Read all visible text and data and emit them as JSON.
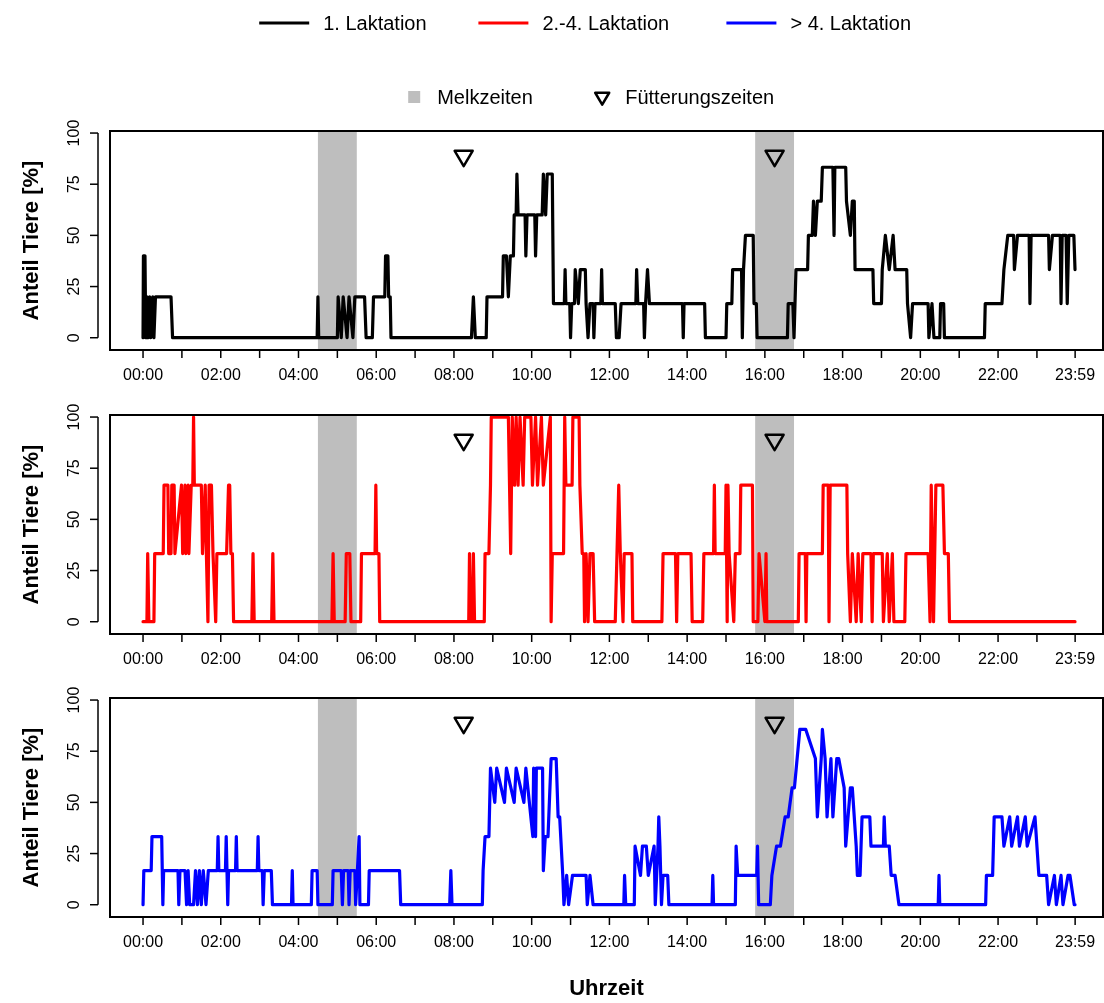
{
  "chart_data": [
    {
      "type": "line",
      "ylabel": "Anteil Tiere [%]",
      "xlim": [
        -0.85,
        24.7
      ],
      "ylim": [
        -6,
        101
      ],
      "yticks": [
        0,
        25,
        50,
        75,
        100
      ],
      "xticks": [
        {
          "value": 0,
          "label": "00:00"
        },
        {
          "value": 1,
          "label": null
        },
        {
          "value": 2,
          "label": "02:00"
        },
        {
          "value": 3,
          "label": null
        },
        {
          "value": 4,
          "label": "04:00"
        },
        {
          "value": 5,
          "label": null
        },
        {
          "value": 6,
          "label": "06:00"
        },
        {
          "value": 7,
          "label": null
        },
        {
          "value": 8,
          "label": "08:00"
        },
        {
          "value": 9,
          "label": null
        },
        {
          "value": 10,
          "label": "10:00"
        },
        {
          "value": 11,
          "label": null
        },
        {
          "value": 12,
          "label": "12:00"
        },
        {
          "value": 13,
          "label": null
        },
        {
          "value": 14,
          "label": "14:00"
        },
        {
          "value": 15,
          "label": null
        },
        {
          "value": 16,
          "label": "16:00"
        },
        {
          "value": 17,
          "label": null
        },
        {
          "value": 18,
          "label": "18:00"
        },
        {
          "value": 19,
          "label": null
        },
        {
          "value": 20,
          "label": "20:00"
        },
        {
          "value": 21,
          "label": null
        },
        {
          "value": 22,
          "label": "22:00"
        },
        {
          "value": 23,
          "label": null
        },
        {
          "value": 23.983,
          "label": "23:59"
        }
      ],
      "legend": "top",
      "grid": false,
      "line_style": "solid",
      "bands": [
        {
          "axis": "x",
          "from": 4.5,
          "to": 5.5,
          "label": "Melkzeiten",
          "color": "#bebebe"
        },
        {
          "axis": "x",
          "from": 15.75,
          "to": 16.75,
          "color": "#bebebe"
        }
      ],
      "series": [
        {
          "name": "1. Laktation",
          "color": "#000000",
          "marker": "none",
          "x": [
            0,
            0.01,
            0.05,
            0.07,
            0.1,
            0.13,
            0.17,
            0.2,
            0.25,
            0.28,
            0.32,
            0.72,
            0.76,
            4.48,
            4.5,
            4.52,
            5.0,
            5.02,
            5.1,
            5.15,
            5.25,
            5.3,
            5.4,
            5.45,
            5.7,
            5.74,
            5.9,
            5.93,
            6.22,
            6.24,
            6.3,
            6.32,
            6.36,
            6.38,
            8.45,
            8.5,
            8.55,
            8.83,
            8.85,
            9.25,
            9.27,
            9.35,
            9.4,
            9.45,
            9.53,
            9.55,
            9.6,
            9.62,
            9.65,
            9.83,
            9.85,
            9.88,
            10.08,
            10.1,
            10.13,
            10.27,
            10.3,
            10.36,
            10.4,
            10.53,
            10.56,
            10.84,
            10.86,
            10.88,
            10.98,
            11.0,
            11.03,
            11.1,
            11.12,
            11.2,
            11.25,
            11.38,
            11.4,
            11.45,
            11.5,
            11.58,
            11.6,
            11.63,
            11.78,
            11.8,
            11.82,
            12.15,
            12.18,
            12.25,
            12.3,
            12.68,
            12.7,
            12.73,
            12.88,
            12.9,
            12.93,
            12.98,
            13.03,
            13.88,
            13.9,
            13.92,
            14.45,
            14.47,
            15.0,
            15.02,
            15.15,
            15.17,
            15.4,
            15.42,
            15.45,
            15.5,
            15.7,
            15.72,
            15.78,
            15.8,
            16.58,
            16.6,
            16.72,
            16.75,
            16.8,
            17.1,
            17.12,
            17.22,
            17.25,
            17.3,
            17.35,
            17.45,
            17.48,
            17.75,
            17.78,
            17.8,
            18.08,
            18.1,
            18.2,
            18.25,
            18.3,
            18.32,
            18.78,
            18.8,
            19.0,
            19.02,
            19.1,
            19.2,
            19.3,
            19.35,
            19.65,
            19.67,
            19.75,
            19.8,
            20.2,
            20.22,
            20.3,
            20.35,
            20.5,
            20.52,
            20.6,
            20.62,
            21.65,
            21.67,
            22.1,
            22.15,
            22.25,
            22.4,
            22.42,
            22.5,
            22.8,
            22.82,
            22.85,
            23.3,
            23.32,
            23.4,
            23.6,
            23.62,
            23.65,
            23.75,
            23.78,
            23.82,
            23.95,
            23.98
          ],
          "values": [
            0,
            40,
            40,
            0,
            20,
            0,
            20,
            0,
            20,
            0,
            20,
            20,
            0,
            0,
            20,
            0,
            0,
            20,
            0,
            20,
            0,
            20,
            0,
            20,
            20,
            0,
            0,
            20,
            20,
            40,
            40,
            20,
            20,
            0,
            0,
            20,
            0,
            0,
            20,
            20,
            40,
            40,
            20,
            40,
            40,
            60,
            60,
            80,
            60,
            60,
            40,
            60,
            60,
            40,
            60,
            60,
            80,
            60,
            80,
            80,
            16.7,
            16.7,
            33.3,
            16.7,
            16.7,
            0,
            16.7,
            16.7,
            33.3,
            16.7,
            33.3,
            33.3,
            16.7,
            0,
            16.7,
            16.7,
            0,
            16.7,
            16.7,
            33.3,
            16.7,
            16.7,
            0,
            0,
            16.7,
            16.7,
            33.3,
            16.7,
            16.7,
            0,
            16.7,
            33.3,
            16.7,
            16.7,
            0,
            16.7,
            16.7,
            0,
            0,
            16.7,
            16.7,
            33.3,
            33.3,
            0,
            33.3,
            50,
            50,
            16.7,
            16.7,
            0,
            0,
            16.7,
            16.7,
            0,
            33.3,
            33.3,
            50,
            50,
            66.7,
            50,
            66.7,
            66.7,
            83.3,
            83.3,
            50,
            83.3,
            83.3,
            66.7,
            50,
            66.7,
            66.7,
            33.3,
            33.3,
            16.7,
            16.7,
            33.3,
            50,
            33.3,
            50,
            33.3,
            33.3,
            16.7,
            0,
            16.7,
            16.7,
            0,
            16.7,
            0,
            0,
            16.7,
            16.7,
            0,
            0,
            16.7,
            16.7,
            33.3,
            50,
            50,
            33.3,
            50,
            50,
            16.7,
            50,
            50,
            33.3,
            50,
            50,
            16.7,
            50,
            50,
            16.7,
            50,
            50,
            33.3
          ]
        },
        {
          "name": "Fütterungszeiten",
          "color": "#000000",
          "type": "scatter",
          "marker": "triangle",
          "x": [
            8.25,
            16.25
          ],
          "values": [
            88,
            88
          ]
        }
      ]
    },
    {
      "type": "line",
      "ylabel": "Anteil Tiere [%]",
      "xlim": [
        -0.85,
        24.7
      ],
      "ylim": [
        -6,
        101
      ],
      "yticks": [
        0,
        25,
        50,
        75,
        100
      ],
      "xticks": [
        {
          "value": 0,
          "label": "00:00"
        },
        {
          "value": 1,
          "label": null
        },
        {
          "value": 2,
          "label": "02:00"
        },
        {
          "value": 3,
          "label": null
        },
        {
          "value": 4,
          "label": "04:00"
        },
        {
          "value": 5,
          "label": null
        },
        {
          "value": 6,
          "label": "06:00"
        },
        {
          "value": 7,
          "label": null
        },
        {
          "value": 8,
          "label": "08:00"
        },
        {
          "value": 9,
          "label": null
        },
        {
          "value": 10,
          "label": "10:00"
        },
        {
          "value": 11,
          "label": null
        },
        {
          "value": 12,
          "label": "12:00"
        },
        {
          "value": 13,
          "label": null
        },
        {
          "value": 14,
          "label": "14:00"
        },
        {
          "value": 15,
          "label": null
        },
        {
          "value": 16,
          "label": "16:00"
        },
        {
          "value": 17,
          "label": null
        },
        {
          "value": 18,
          "label": "18:00"
        },
        {
          "value": 19,
          "label": null
        },
        {
          "value": 20,
          "label": "20:00"
        },
        {
          "value": 21,
          "label": null
        },
        {
          "value": 22,
          "label": "22:00"
        },
        {
          "value": 23,
          "label": null
        },
        {
          "value": 23.983,
          "label": "23:59"
        }
      ],
      "legend": "top",
      "grid": false,
      "line_style": "solid",
      "bands": [
        {
          "axis": "x",
          "from": 4.5,
          "to": 5.5,
          "color": "#bebebe"
        },
        {
          "axis": "x",
          "from": 15.75,
          "to": 16.75,
          "color": "#bebebe"
        }
      ],
      "series": [
        {
          "name": "2.-4. Laktation",
          "color": "#ff0000",
          "marker": "none",
          "x": [
            0,
            0.1,
            0.12,
            0.15,
            0.28,
            0.3,
            0.52,
            0.54,
            0.64,
            0.66,
            0.72,
            0.74,
            0.8,
            0.82,
            0.99,
            1.02,
            1.08,
            1.1,
            1.16,
            1.18,
            1.24,
            1.28,
            1.3,
            1.32,
            1.5,
            1.53,
            1.6,
            1.63,
            1.67,
            1.7,
            1.76,
            1.8,
            1.87,
            1.9,
            2.15,
            2.2,
            2.23,
            2.26,
            2.3,
            2.33,
            2.8,
            2.83,
            2.86,
            3.31,
            3.34,
            3.37,
            4.86,
            4.89,
            4.92,
            5.2,
            5.23,
            5.32,
            5.35,
            5.6,
            5.62,
            5.97,
            5.99,
            6.01,
            6.07,
            6.09,
            8.38,
            8.4,
            8.43,
            8.48,
            8.5,
            8.53,
            8.78,
            8.8,
            8.9,
            8.94,
            8.96,
            9.4,
            9.43,
            9.46,
            9.5,
            9.56,
            9.6,
            9.65,
            9.7,
            9.78,
            9.82,
            9.98,
            10.02,
            10.1,
            10.15,
            10.25,
            10.3,
            10.48,
            10.5,
            10.53,
            10.82,
            10.85,
            10.88,
            11.04,
            11.06,
            11.22,
            11.24,
            11.3,
            11.34,
            11.36,
            11.4,
            11.45,
            11.5,
            11.58,
            11.62,
            12.15,
            12.24,
            12.28,
            12.35,
            12.38,
            12.58,
            12.6,
            13.35,
            13.38,
            13.7,
            13.73,
            13.76,
            14.1,
            14.13,
            14.4,
            14.43,
            14.68,
            14.7,
            14.72,
            14.98,
            15.0,
            15.03,
            15.05,
            15.08,
            15.2,
            15.24,
            15.36,
            15.38,
            15.68,
            15.7,
            15.82,
            15.85,
            16.0,
            16.03,
            16.05,
            16.86,
            16.88,
            17.04,
            17.06,
            17.08,
            17.48,
            17.5,
            17.63,
            17.65,
            17.68,
            18.11,
            18.13,
            18.2,
            18.25,
            18.35,
            18.4,
            18.48,
            18.52,
            18.73,
            18.76,
            18.79,
            19.02,
            19.05,
            19.15,
            19.2,
            19.28,
            19.32,
            19.6,
            19.63,
            20.2,
            20.25,
            20.28,
            20.34,
            20.4,
            20.58,
            20.62,
            20.72,
            20.75,
            23.98
          ],
          "values": [
            0,
            0,
            33.3,
            0,
            0,
            33.3,
            33.3,
            66.7,
            66.7,
            33.3,
            33.3,
            66.7,
            66.7,
            33.3,
            66.7,
            33.3,
            66.7,
            33.3,
            66.7,
            33.3,
            66.7,
            66.7,
            100,
            66.7,
            66.7,
            33.3,
            66.7,
            33.3,
            0,
            66.7,
            66.7,
            33.3,
            0,
            33.3,
            33.3,
            66.7,
            66.7,
            33.3,
            33.3,
            0,
            0,
            33.3,
            0,
            0,
            33.3,
            0,
            0,
            33.3,
            0,
            0,
            33.3,
            33.3,
            0,
            0,
            33.3,
            33.3,
            66.7,
            33.3,
            33.3,
            0,
            0,
            33.3,
            0,
            0,
            33.3,
            0,
            0,
            33.3,
            33.3,
            66.7,
            100,
            100,
            66.7,
            33.3,
            100,
            66.7,
            100,
            66.7,
            100,
            66.7,
            100,
            100,
            66.7,
            100,
            66.7,
            100,
            66.7,
            100,
            0,
            33.3,
            33.3,
            100,
            66.7,
            66.7,
            100,
            100,
            66.7,
            33.3,
            33.3,
            0,
            33.3,
            0,
            33.3,
            33.3,
            0,
            0,
            66.7,
            33.3,
            0,
            33.3,
            33.3,
            0,
            0,
            33.3,
            33.3,
            0,
            33.3,
            33.3,
            0,
            0,
            33.3,
            33.3,
            66.7,
            33.3,
            33.3,
            66.7,
            0,
            66.7,
            33.3,
            0,
            33.3,
            33.3,
            66.7,
            66.7,
            0,
            0,
            33.3,
            0,
            33.3,
            0,
            0,
            33.3,
            33.3,
            0,
            33.3,
            33.3,
            66.7,
            66.7,
            0,
            66.7,
            66.7,
            33.3,
            0,
            33.3,
            0,
            33.3,
            0,
            33.3,
            33.3,
            0,
            33.3,
            33.3,
            0,
            33.3,
            0,
            33.3,
            0,
            0,
            33.3,
            33.3,
            0,
            66.7,
            0,
            66.7,
            66.7,
            33.3,
            33.3,
            0,
            0
          ]
        },
        {
          "color": "#000000",
          "type": "scatter",
          "marker": "triangle",
          "x": [
            8.25,
            16.25
          ],
          "values": [
            88,
            88
          ]
        }
      ]
    },
    {
      "type": "line",
      "xlabel": "Uhrzeit",
      "ylabel": "Anteil Tiere [%]",
      "xlim": [
        -0.85,
        24.7
      ],
      "ylim": [
        -6,
        101
      ],
      "yticks": [
        0,
        25,
        50,
        75,
        100
      ],
      "xticks": [
        {
          "value": 0,
          "label": "00:00"
        },
        {
          "value": 1,
          "label": null
        },
        {
          "value": 2,
          "label": "02:00"
        },
        {
          "value": 3,
          "label": null
        },
        {
          "value": 4,
          "label": "04:00"
        },
        {
          "value": 5,
          "label": null
        },
        {
          "value": 6,
          "label": "06:00"
        },
        {
          "value": 7,
          "label": null
        },
        {
          "value": 8,
          "label": "08:00"
        },
        {
          "value": 9,
          "label": null
        },
        {
          "value": 10,
          "label": "10:00"
        },
        {
          "value": 11,
          "label": null
        },
        {
          "value": 12,
          "label": "12:00"
        },
        {
          "value": 13,
          "label": null
        },
        {
          "value": 14,
          "label": "14:00"
        },
        {
          "value": 15,
          "label": null
        },
        {
          "value": 16,
          "label": "16:00"
        },
        {
          "value": 17,
          "label": null
        },
        {
          "value": 18,
          "label": "18:00"
        },
        {
          "value": 19,
          "label": null
        },
        {
          "value": 20,
          "label": "20:00"
        },
        {
          "value": 21,
          "label": null
        },
        {
          "value": 22,
          "label": "22:00"
        },
        {
          "value": 23,
          "label": null
        },
        {
          "value": 23.983,
          "label": "23:59"
        }
      ],
      "legend": "top",
      "grid": false,
      "line_style": "solid",
      "bands": [
        {
          "axis": "x",
          "from": 4.5,
          "to": 5.5,
          "color": "#bebebe"
        },
        {
          "axis": "x",
          "from": 15.75,
          "to": 16.75,
          "color": "#bebebe"
        }
      ],
      "series": [
        {
          "name": "> 4. Laktation",
          "color": "#0000ff",
          "marker": "none",
          "x": [
            0,
            0.02,
            0.21,
            0.23,
            0.48,
            0.51,
            0.53,
            0.9,
            0.92,
            0.95,
            1.08,
            1.12,
            1.16,
            1.2,
            1.3,
            1.35,
            1.4,
            1.45,
            1.5,
            1.55,
            1.62,
            1.68,
            1.91,
            1.93,
            1.95,
            2.12,
            2.14,
            2.16,
            2.18,
            2.2,
            2.38,
            2.4,
            2.42,
            2.94,
            2.96,
            2.98,
            3.07,
            3.09,
            3.12,
            3.3,
            3.33,
            3.82,
            3.84,
            3.86,
            4.33,
            4.35,
            4.48,
            4.5,
            4.87,
            4.89,
            5.1,
            5.13,
            5.16,
            5.28,
            5.3,
            5.33,
            5.45,
            5.47,
            5.56,
            5.58,
            5.8,
            5.82,
            6.6,
            6.63,
            7.89,
            7.92,
            7.95,
            8.73,
            8.75,
            8.8,
            8.9,
            8.94,
            9.05,
            9.1,
            9.3,
            9.35,
            9.55,
            9.6,
            9.8,
            9.85,
            10.03,
            10.05,
            10.1,
            10.12,
            10.28,
            10.3,
            10.35,
            10.42,
            10.5,
            10.63,
            10.68,
            10.72,
            10.8,
            10.83,
            10.9,
            10.95,
            11.05,
            11.4,
            11.43,
            11.5,
            11.58,
            12.37,
            12.39,
            12.42,
            12.64,
            12.66,
            12.8,
            12.85,
            12.95,
            13.0,
            13.15,
            13.18,
            13.25,
            13.27,
            13.3,
            13.34,
            13.38,
            13.5,
            13.53,
            14.64,
            14.66,
            14.68,
            15.24,
            15.26,
            15.3,
            15.79,
            15.81,
            15.84,
            16.14,
            16.18,
            16.3,
            16.4,
            16.52,
            16.6,
            16.7,
            16.76,
            16.9,
            17.05,
            17.3,
            17.35,
            17.45,
            17.48,
            17.55,
            17.6,
            17.7,
            17.75,
            17.85,
            17.9,
            18.04,
            18.08,
            18.2,
            18.25,
            18.35,
            18.38,
            18.45,
            18.5,
            18.7,
            18.73,
            19.05,
            19.07,
            19.1,
            19.2,
            19.25,
            19.35,
            19.45,
            20.46,
            20.48,
            20.5,
            21.68,
            21.7,
            21.86,
            21.9,
            22.1,
            22.15,
            22.3,
            22.35,
            22.5,
            22.55,
            22.7,
            22.75,
            22.95,
            23.05,
            23.25,
            23.3,
            23.45,
            23.5,
            23.62,
            23.67,
            23.8,
            23.85,
            23.96,
            23.98
          ],
          "values": [
            0,
            16.7,
            16.7,
            33.3,
            33.3,
            0,
            16.7,
            16.7,
            0,
            16.7,
            16.7,
            0,
            16.7,
            0,
            0,
            16.7,
            0,
            16.7,
            0,
            16.7,
            0,
            16.7,
            16.7,
            33.3,
            16.7,
            16.7,
            33.3,
            16.7,
            0,
            16.7,
            16.7,
            33.3,
            16.7,
            16.7,
            33.3,
            16.7,
            16.7,
            0,
            16.7,
            16.7,
            0,
            0,
            16.7,
            0,
            0,
            16.7,
            16.7,
            0,
            0,
            16.7,
            16.7,
            0,
            16.7,
            16.7,
            0,
            16.7,
            16.7,
            0,
            33.3,
            0,
            0,
            16.7,
            16.7,
            0,
            0,
            16.7,
            0,
            0,
            16.7,
            33.3,
            33.3,
            66.7,
            50,
            66.7,
            50,
            66.7,
            50,
            66.7,
            50,
            66.7,
            33.3,
            66.7,
            33.3,
            66.7,
            66.7,
            16.7,
            33.3,
            33.3,
            71.4,
            71.4,
            42.9,
            42.9,
            14.3,
            0,
            14.3,
            0,
            14.3,
            14.3,
            0,
            14.3,
            0,
            0,
            14.3,
            0,
            0,
            28.6,
            14.3,
            28.6,
            28.6,
            14.3,
            28.6,
            0,
            28.6,
            42.9,
            28.6,
            0,
            14.3,
            14.3,
            0,
            0,
            14.3,
            0,
            0,
            28.6,
            14.3,
            14.3,
            28.6,
            0,
            0,
            14.3,
            28.6,
            28.6,
            42.9,
            42.9,
            57.1,
            57.1,
            85.7,
            85.7,
            71.4,
            42.9,
            71.4,
            85.7,
            71.4,
            42.9,
            71.4,
            42.9,
            71.4,
            71.4,
            57.1,
            28.6,
            57.1,
            57.1,
            28.6,
            14.3,
            14.3,
            42.9,
            42.9,
            28.6,
            28.6,
            42.9,
            28.6,
            28.6,
            14.3,
            14.3,
            0,
            0,
            14.3,
            0,
            0,
            14.3,
            14.3,
            42.9,
            42.9,
            28.6,
            42.9,
            28.6,
            42.9,
            28.6,
            42.9,
            28.6,
            42.9,
            14.3,
            14.3,
            0,
            14.3,
            0,
            14.3,
            0,
            14.3,
            14.3,
            0,
            0
          ]
        },
        {
          "color": "#000000",
          "type": "scatter",
          "marker": "triangle",
          "x": [
            8.25,
            16.25
          ],
          "values": [
            88,
            88
          ]
        }
      ]
    }
  ]
}
